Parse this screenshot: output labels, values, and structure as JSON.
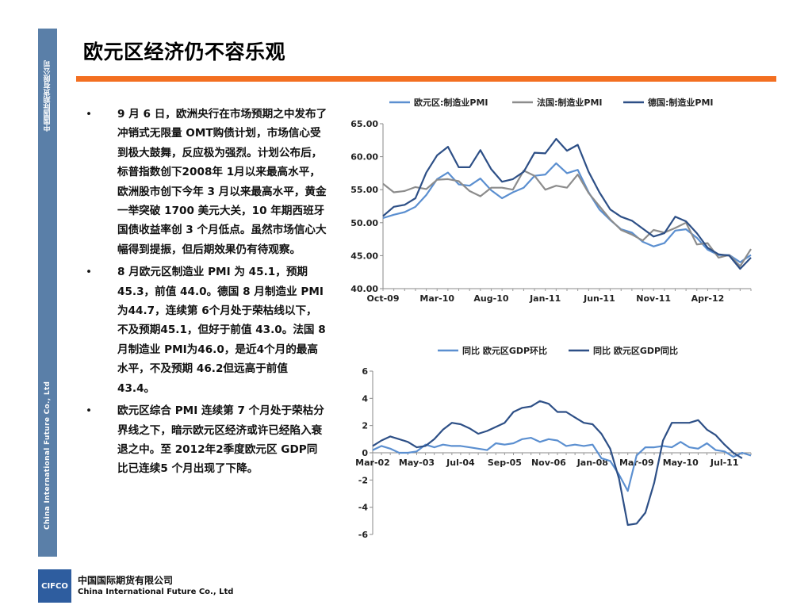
{
  "sidebar": {
    "company_cn": "中国国际期货有限公司",
    "company_en": "China International Future Co., Ltd"
  },
  "title": "欧元区经济仍不容乐观",
  "bullets": [
    "9 月 6 日，欧洲央行在市场预期之中发布了冲销式无限量 OMT购债计划，市场信心受到极大鼓舞，反应极为强烈。计划公布后，标普指数创下2008年 1月以来最高水平，欧洲股市创下今年 3 月以来最高水平，黄金一举突破 1700 美元大关，10 年期西班牙国债收益率创 3 个月低点。虽然市场信心大幅得到提振，但后期效果仍有待观察。",
    "8 月欧元区制造业 PMI 为 45.1，预期 45.3，前值 44.0。德国 8 月制造业 PMI 为44.7，连续第 6个月处于荣枯线以下，不及预期45.1，但好于前值 43.0。法国 8月制造业 PMI为46.0，是近4个月的最高水平，不及预期 46.2但远高于前值 43.4。",
    "欧元区综合 PMI 连续第 7 个月处于荣枯分界线之下，暗示欧元区经济或许已经陷入衰退之中。至 2012年2季度欧元区 GDP同比已连续5 个月出现了下降。"
  ],
  "bullet_symbol": "•",
  "footer": {
    "logo": "CIFCO",
    "company_cn": "中国国际期货有限公司",
    "company_en": "China International Future Co., Ltd"
  },
  "chart_data": [
    {
      "type": "line",
      "ylim": [
        40,
        65
      ],
      "y_ticks": [
        "65.00",
        "60.00",
        "55.00",
        "50.00",
        "45.00",
        "40.00"
      ],
      "x_tick_labels": [
        "Oct-09",
        "Mar-10",
        "Aug-10",
        "Jan-11",
        "Jun-11",
        "Nov-11",
        "Apr-12"
      ],
      "x_tick_index": [
        0,
        5,
        10,
        15,
        20,
        25,
        30
      ],
      "legend_position": "top",
      "grid": false,
      "series": [
        {
          "name": "欧元区:制造业PMI",
          "color": "#5b8fd0",
          "values": [
            50.7,
            51.2,
            51.6,
            52.4,
            54.2,
            56.6,
            57.6,
            55.8,
            55.6,
            56.7,
            54.9,
            53.7,
            54.6,
            55.3,
            57.1,
            57.3,
            59.0,
            57.5,
            58.0,
            54.6,
            52.0,
            50.4,
            49.0,
            48.5,
            47.1,
            46.4,
            46.9,
            48.8,
            49.0,
            47.7,
            45.9,
            45.1,
            45.1,
            44.0,
            45.1
          ]
        },
        {
          "name": "法国:制造业PMI",
          "color": "#8c8c8c",
          "values": [
            55.9,
            54.6,
            54.8,
            55.4,
            55.1,
            56.5,
            56.6,
            56.3,
            54.8,
            54.0,
            55.3,
            55.3,
            55.0,
            57.9,
            57.1,
            55.0,
            55.6,
            55.3,
            57.3,
            54.5,
            52.5,
            50.5,
            48.9,
            48.2,
            47.3,
            48.9,
            48.5,
            49.2,
            50.0,
            46.7,
            46.9,
            44.7,
            45.1,
            43.4,
            46.0
          ]
        },
        {
          "name": "德国:制造业PMI",
          "color": "#2d4f86",
          "values": [
            51.0,
            52.4,
            52.7,
            53.7,
            57.6,
            60.2,
            61.5,
            58.4,
            58.4,
            61.0,
            58.1,
            56.2,
            56.6,
            57.7,
            60.6,
            60.5,
            62.7,
            60.9,
            61.8,
            57.7,
            54.6,
            52.0,
            50.9,
            50.3,
            49.1,
            47.9,
            48.4,
            50.9,
            50.2,
            48.4,
            46.2,
            45.2,
            45.0,
            43.0,
            44.7
          ]
        }
      ]
    },
    {
      "type": "line",
      "ylim": [
        -6,
        6
      ],
      "y_ticks": [
        "6",
        "4",
        "2",
        "0",
        "-2",
        "-4",
        "-6"
      ],
      "x_tick_labels": [
        "Mar-02",
        "May-03",
        "Jul-04",
        "Sep-05",
        "Nov-06",
        "Jan-08",
        "Mar-09",
        "May-10",
        "Jul-11"
      ],
      "x_tick_index": [
        0,
        5,
        10,
        15,
        20,
        25,
        30,
        35,
        40
      ],
      "legend_position": "top",
      "grid": false,
      "series": [
        {
          "name": "同比 欧元区GDP环比",
          "color": "#5b8fd0",
          "values": [
            0.2,
            0.5,
            0.3,
            0.0,
            0.0,
            0.1,
            0.6,
            0.4,
            0.6,
            0.5,
            0.5,
            0.4,
            0.3,
            0.2,
            0.7,
            0.6,
            0.7,
            1.0,
            1.1,
            0.8,
            1.0,
            0.9,
            0.5,
            0.6,
            0.5,
            0.6,
            -0.4,
            -0.6,
            -1.6,
            -2.8,
            -0.2,
            0.4,
            0.4,
            0.5,
            0.4,
            0.8,
            0.4,
            0.3,
            0.7,
            0.2,
            0.1,
            -0.3,
            0.0,
            -0.2
          ]
        },
        {
          "name": "同比 欧元区GDP同比",
          "color": "#2d4f86",
          "values": [
            0.5,
            0.9,
            1.2,
            1.0,
            0.8,
            0.4,
            0.5,
            1.0,
            1.7,
            2.2,
            2.1,
            1.8,
            1.4,
            1.6,
            1.9,
            2.2,
            3.0,
            3.3,
            3.4,
            3.8,
            3.6,
            3.0,
            3.0,
            2.6,
            2.2,
            2.1,
            1.4,
            0.3,
            -1.9,
            -5.3,
            -5.2,
            -4.4,
            -2.2,
            0.9,
            2.2,
            2.2,
            2.2,
            2.4,
            1.7,
            1.3,
            0.6,
            0.0,
            -0.4
          ]
        }
      ]
    }
  ]
}
